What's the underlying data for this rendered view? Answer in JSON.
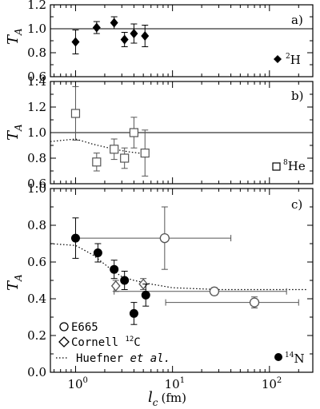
{
  "chart_data": [
    {
      "type": "scatter",
      "panel_label": "a)",
      "ylabel": "T",
      "ylabel_sub": "A",
      "ylim": [
        0.6,
        1.2
      ],
      "yticks": [
        "0.6",
        "0.8",
        "1.0",
        "1.2"
      ],
      "xscale": "log",
      "xlim": [
        0.55,
        280
      ],
      "reference_line": 1.0,
      "series": [
        {
          "name": "²H",
          "marker": "filled-diamond",
          "points": [
            {
              "x": 1.0,
              "y": 0.89,
              "ylo": 0.79,
              "yhi": 0.99
            },
            {
              "x": 1.65,
              "y": 1.01,
              "ylo": 0.96,
              "yhi": 1.06
            },
            {
              "x": 2.5,
              "y": 1.05,
              "ylo": 1.0,
              "yhi": 1.1
            },
            {
              "x": 3.2,
              "y": 0.91,
              "ylo": 0.85,
              "yhi": 0.97
            },
            {
              "x": 4.0,
              "y": 0.96,
              "ylo": 0.88,
              "yhi": 1.04
            },
            {
              "x": 5.2,
              "y": 0.94,
              "ylo": 0.85,
              "yhi": 1.03
            }
          ]
        }
      ]
    },
    {
      "type": "scatter",
      "panel_label": "b)",
      "ylabel": "T",
      "ylabel_sub": "A",
      "ylim": [
        0.6,
        1.4
      ],
      "yticks": [
        "0.6",
        "0.8",
        "1.0",
        "1.2",
        "1.4"
      ],
      "xscale": "log",
      "xlim": [
        0.55,
        280
      ],
      "reference_line": 1.0,
      "curve": {
        "name": "Huefner et al.",
        "x": [
          0.55,
          1.0,
          1.5,
          2.5,
          3.5,
          4.5,
          6.0
        ],
        "y": [
          0.93,
          0.95,
          0.91,
          0.87,
          0.85,
          0.84,
          0.84
        ]
      },
      "series": [
        {
          "name": "⁸He",
          "marker": "open-square",
          "points": [
            {
              "x": 1.0,
              "y": 1.15,
              "ylo": 0.94,
              "yhi": 1.36
            },
            {
              "x": 1.65,
              "y": 0.77,
              "ylo": 0.7,
              "yhi": 0.84
            },
            {
              "x": 2.5,
              "y": 0.87,
              "ylo": 0.79,
              "yhi": 0.95
            },
            {
              "x": 3.2,
              "y": 0.8,
              "ylo": 0.72,
              "yhi": 0.88
            },
            {
              "x": 4.0,
              "y": 1.0,
              "ylo": 0.88,
              "yhi": 1.12
            },
            {
              "x": 5.2,
              "y": 0.84,
              "ylo": 0.66,
              "yhi": 1.02
            }
          ]
        }
      ]
    },
    {
      "type": "scatter",
      "panel_label": "c)",
      "xlabel": "l",
      "xlabel_sub": "c",
      "xlabel_unit": "(fm)",
      "ylabel": "T",
      "ylabel_sub": "A",
      "ylim": [
        0.0,
        1.0
      ],
      "yticks": [
        "0.0",
        "0.2",
        "0.4",
        "0.6",
        "0.8",
        "1.0"
      ],
      "xscale": "log",
      "xlim": [
        0.55,
        280
      ],
      "xticks": [
        {
          "base": "10",
          "exp": "0"
        },
        {
          "base": "10",
          "exp": "1"
        },
        {
          "base": "10",
          "exp": "2"
        }
      ],
      "curve": {
        "name": "Huefner et al.",
        "x": [
          0.55,
          1.0,
          1.5,
          2.2,
          3.0,
          4.0,
          6.0,
          10,
          30,
          100,
          250
        ],
        "y": [
          0.7,
          0.69,
          0.64,
          0.57,
          0.52,
          0.5,
          0.48,
          0.46,
          0.45,
          0.45,
          0.45
        ]
      },
      "series": [
        {
          "name": "E665",
          "marker": "open-circle",
          "points": [
            {
              "x": 8.3,
              "y": 0.73,
              "ylo": 0.56,
              "yhi": 0.9,
              "xlo": 1.0,
              "xhi": 40
            },
            {
              "x": 27,
              "y": 0.44,
              "ylo": 0.42,
              "yhi": 0.46,
              "xlo": 2.5,
              "xhi": 150
            },
            {
              "x": 70,
              "y": 0.38,
              "ylo": 0.35,
              "yhi": 0.41,
              "xlo": 8.5,
              "xhi": 200
            }
          ]
        },
        {
          "name": "Cornell ¹²C",
          "marker": "open-diamond",
          "points": [
            {
              "x": 2.6,
              "y": 0.47,
              "ylo": 0.44,
              "yhi": 0.5
            },
            {
              "x": 5.0,
              "y": 0.48,
              "ylo": 0.45,
              "yhi": 0.51
            }
          ]
        },
        {
          "name": "¹⁴N",
          "marker": "filled-circle",
          "points": [
            {
              "x": 1.0,
              "y": 0.73,
              "ylo": 0.62,
              "yhi": 0.84
            },
            {
              "x": 1.7,
              "y": 0.65,
              "ylo": 0.6,
              "yhi": 0.7
            },
            {
              "x": 2.5,
              "y": 0.56,
              "ylo": 0.51,
              "yhi": 0.61
            },
            {
              "x": 3.2,
              "y": 0.5,
              "ylo": 0.45,
              "yhi": 0.55
            },
            {
              "x": 4.0,
              "y": 0.32,
              "ylo": 0.26,
              "yhi": 0.38
            },
            {
              "x": 5.3,
              "y": 0.42,
              "ylo": 0.36,
              "yhi": 0.48
            }
          ]
        }
      ],
      "legend": [
        {
          "marker": "open-circle",
          "label": "E665"
        },
        {
          "marker": "open-diamond",
          "label": "Cornell ",
          "sup": "12",
          "tail": "C"
        },
        {
          "marker": "dotted-line",
          "label": "Huefner ",
          "italic": "et al."
        }
      ]
    }
  ],
  "panel_markers": [
    {
      "marker": "filled-diamond",
      "sup": "2",
      "label": "H"
    },
    {
      "marker": "open-square",
      "sup": "8",
      "label": "He"
    },
    {
      "marker": "filled-circle",
      "sup": "14",
      "label": "N"
    }
  ]
}
